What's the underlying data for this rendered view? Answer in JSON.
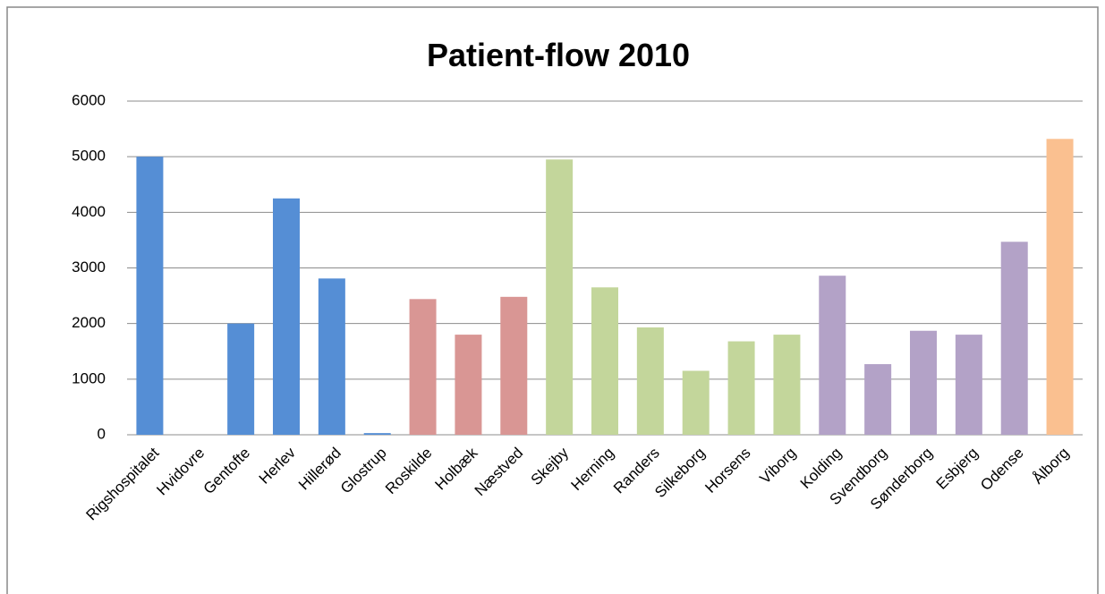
{
  "chart_data": {
    "type": "bar",
    "title": "Patient-flow 2010",
    "categories": [
      "Rigshospitalet",
      "Hvidovre",
      "Gentofte",
      "Herlev",
      "Hillerød",
      "Glostrup",
      "Roskilde",
      "Holbæk",
      "Næstved",
      "Skejby",
      "Herning",
      "Randers",
      "Silkeborg",
      "Horsens",
      "Viborg",
      "Kolding",
      "Svendborg",
      "Sønderborg",
      "Esbjerg",
      "Odense",
      "Ålborg"
    ],
    "values": [
      5000,
      0,
      2000,
      4250,
      2810,
      30,
      2440,
      1800,
      2480,
      4950,
      2650,
      1930,
      1150,
      1680,
      1800,
      2860,
      1270,
      1870,
      1800,
      3470,
      5320
    ],
    "colors": [
      "#558ed5",
      "#558ed5",
      "#558ed5",
      "#558ed5",
      "#558ed5",
      "#558ed5",
      "#d99694",
      "#d99694",
      "#d99694",
      "#c3d69b",
      "#c3d69b",
      "#c3d69b",
      "#c3d69b",
      "#c3d69b",
      "#c3d69b",
      "#b3a2c7",
      "#b3a2c7",
      "#b3a2c7",
      "#b3a2c7",
      "#b3a2c7",
      "#fac090"
    ],
    "ylim": [
      0,
      6000
    ],
    "yticks": [
      0,
      1000,
      2000,
      3000,
      4000,
      5000,
      6000
    ],
    "grid": true
  }
}
